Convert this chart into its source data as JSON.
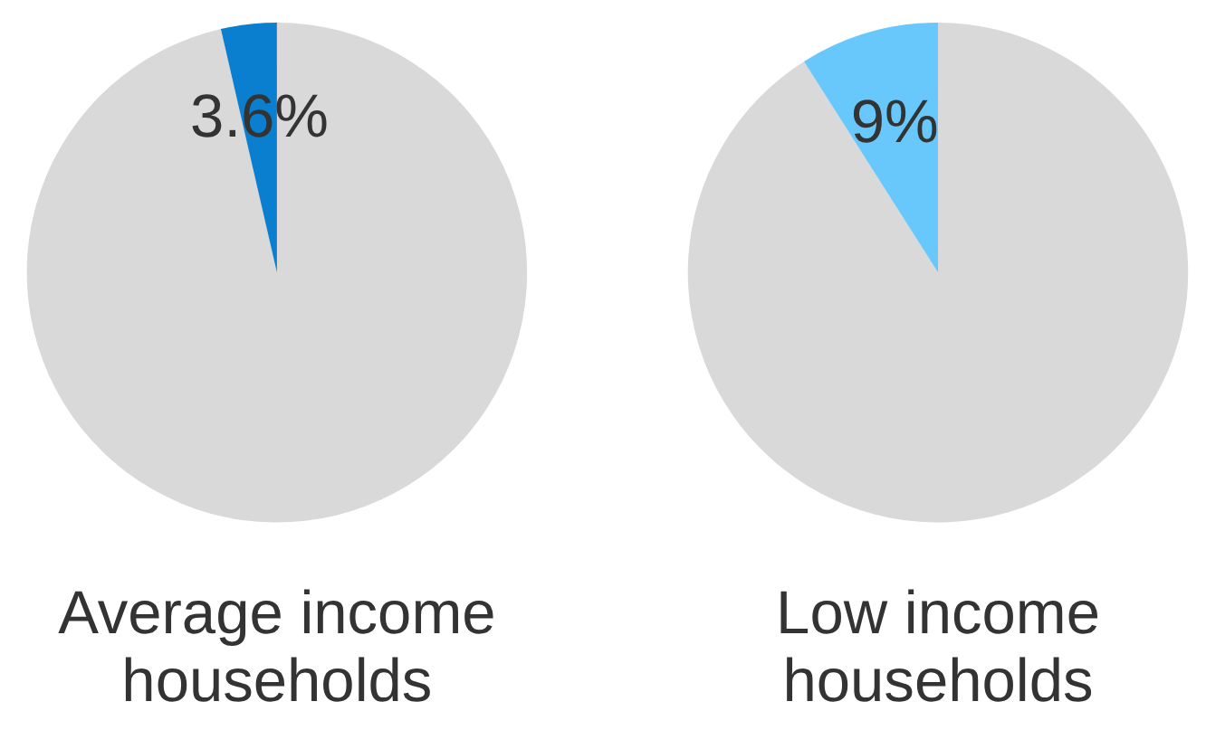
{
  "chart_data": [
    {
      "type": "pie",
      "title": "Average income\nhouseholds",
      "categories": [
        null,
        null
      ],
      "values": [
        96.4,
        3.6
      ],
      "colors": [
        "#d9d9d9",
        "#0a7fcf"
      ],
      "value_labels": [
        null,
        "3.6%"
      ]
    },
    {
      "type": "pie",
      "title": "Low income\nhouseholds",
      "categories": [
        null,
        null
      ],
      "values": [
        91,
        9
      ],
      "colors": [
        "#d9d9d9",
        "#69c8fb"
      ],
      "value_labels": [
        null,
        "9%"
      ]
    }
  ]
}
